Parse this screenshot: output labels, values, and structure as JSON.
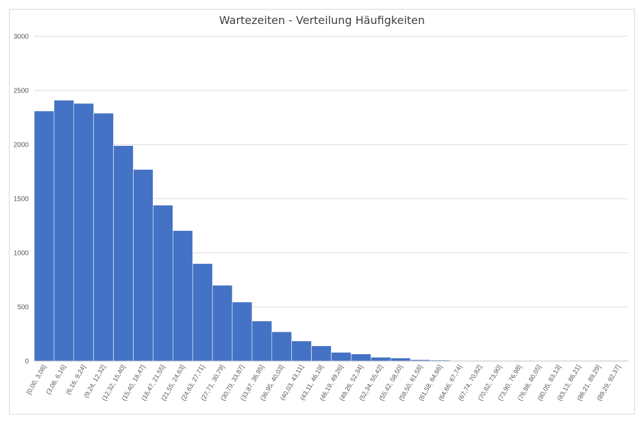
{
  "chart_data": {
    "type": "bar",
    "title": "Wartezeiten - Verteilung Häufigkeiten",
    "xlabel": "",
    "ylabel": "",
    "ylim": [
      0,
      3000
    ],
    "yticks": [
      0,
      500,
      1000,
      1500,
      2000,
      2500,
      3000
    ],
    "grid": true,
    "legend": "none",
    "bar_color": "#4472c4",
    "categories": [
      "[0,00, 3,08]",
      "(3,08, 6,16]",
      "(6,16, 9,24]",
      "(9,24, 12,32]",
      "(12,32, 15,40]",
      "(15,40, 18,47]",
      "(18,47, 21,55]",
      "(21,55, 24,63]",
      "(24,63, 27,71]",
      "(27,71, 30,79]",
      "(30,79, 33,87]",
      "(33,87, 36,95]",
      "(36,95, 40,03]",
      "(40,03, 43,11]",
      "(43,11, 46,19]",
      "(46,19, 49,26]",
      "(49,26, 52,34]",
      "(52,34, 55,42]",
      "(55,42, 58,50]",
      "(58,50, 61,58]",
      "(61,58, 64,66]",
      "(64,66, 67,74]",
      "(67,74, 70,82]",
      "(70,82, 73,90]",
      "(73,90, 76,98]",
      "(76,98, 80,05]",
      "(80,05, 83,13]",
      "(83,13, 86,21]",
      "(86,21, 89,29]",
      "(89,29, 92,37]"
    ],
    "values": [
      2310,
      2410,
      2380,
      2290,
      1990,
      1770,
      1440,
      1205,
      900,
      700,
      545,
      370,
      270,
      185,
      140,
      80,
      65,
      35,
      28,
      12,
      8,
      5,
      3,
      2,
      1,
      1,
      1,
      1,
      0,
      1
    ]
  }
}
